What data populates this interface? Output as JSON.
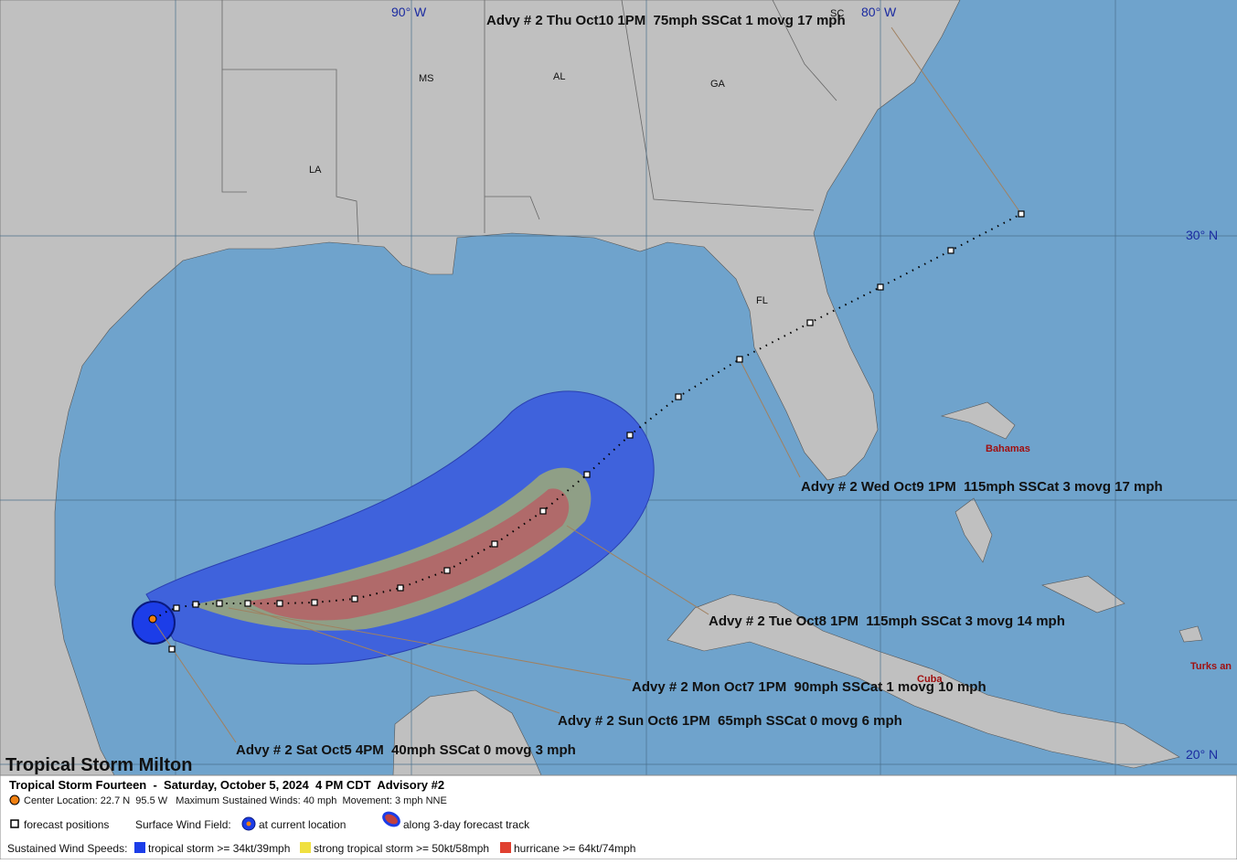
{
  "map": {
    "grid_labels": [
      "90° W",
      "80° W",
      "30° N",
      "20° N"
    ],
    "region_labels": [
      "MS",
      "AL",
      "GA",
      "SC",
      "LA",
      "FL",
      "Bahamas",
      "Cuba",
      "Turks an"
    ],
    "advisories": [
      "Advy # 2 Thu Oct10 1PM  75mph SSCat 1 movg 17 mph",
      "Advy # 2 Wed Oct9 1PM  115mph SSCat 3 movg 17 mph",
      "Advy # 2 Tue Oct8 1PM  115mph SSCat 3 movg 14 mph",
      "Advy # 2 Mon Oct7 1PM  90mph SSCat 1 movg 10 mph",
      "Advy # 2 Sun Oct6 1PM  65mph SSCat 0 movg 6 mph",
      "Advy # 2 Sat Oct5 4PM  40mph SSCat 0 movg 3 mph"
    ],
    "title": "Tropical Storm Milton"
  },
  "legend": {
    "subtitle": "Tropical Storm Fourteen  -  Saturday, October 5, 2024  4 PM CDT  Advisory #2",
    "details": "Center Location: 22.7 N  95.5 W   Maximum Sustained Winds: 40 mph  Movement: 3 mph NNE",
    "forecast_positions": "forecast positions",
    "surface_wind_field": "Surface Wind Field:",
    "at_current_location": "at current location",
    "along_track": "along 3-day forecast track",
    "sustained_wind_speeds": "Sustained Wind Speeds:",
    "tropical_storm": "tropical storm >= 34kt/39mph",
    "strong_tropical_storm": "strong tropical storm >= 50kt/58mph",
    "hurricane": "hurricane >= 64kt/74mph"
  }
}
